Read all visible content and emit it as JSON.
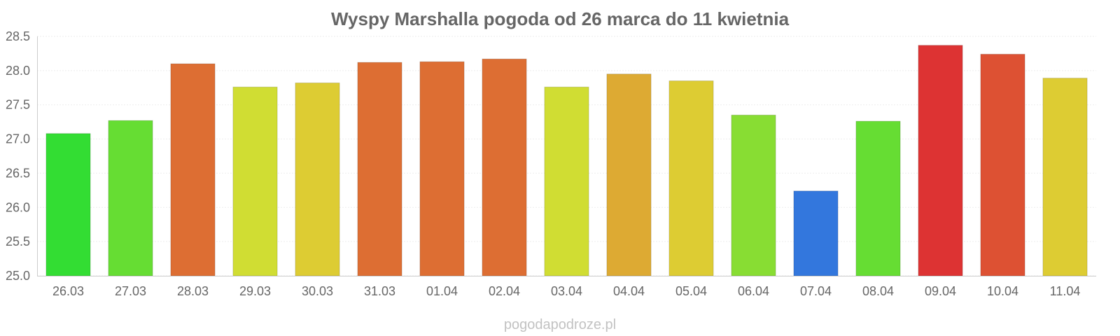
{
  "chart_data": {
    "type": "bar",
    "title": "Wyspy Marshalla pogoda od 26 marca do 11 kwietnia",
    "xlabel": "",
    "ylabel": "",
    "categories": [
      "26.03",
      "27.03",
      "28.03",
      "29.03",
      "30.03",
      "31.03",
      "01.04",
      "02.04",
      "03.04",
      "04.04",
      "05.04",
      "06.04",
      "07.04",
      "08.04",
      "09.04",
      "10.04",
      "11.04"
    ],
    "values": [
      27.08,
      27.27,
      28.1,
      27.76,
      27.82,
      28.12,
      28.13,
      28.17,
      27.76,
      27.95,
      27.85,
      27.35,
      26.24,
      27.26,
      28.37,
      28.24,
      27.89
    ],
    "colors": [
      "#33dd33",
      "#66dd33",
      "#dd6e33",
      "#d0dd33",
      "#ddcc33",
      "#dd6e33",
      "#dd6e33",
      "#dd6e33",
      "#d0dd33",
      "#ddaa33",
      "#ddcc33",
      "#88dd33",
      "#3377dd",
      "#66dd33",
      "#dd3333",
      "#dd5133",
      "#ddcc33"
    ],
    "ylim": [
      25.0,
      28.5
    ],
    "yticks": [
      "25.0",
      "25.5",
      "26.0",
      "26.5",
      "27.0",
      "27.5",
      "28.0",
      "28.5"
    ],
    "grid": true,
    "legend": "none"
  },
  "watermark": "pogodapodroze.pl"
}
